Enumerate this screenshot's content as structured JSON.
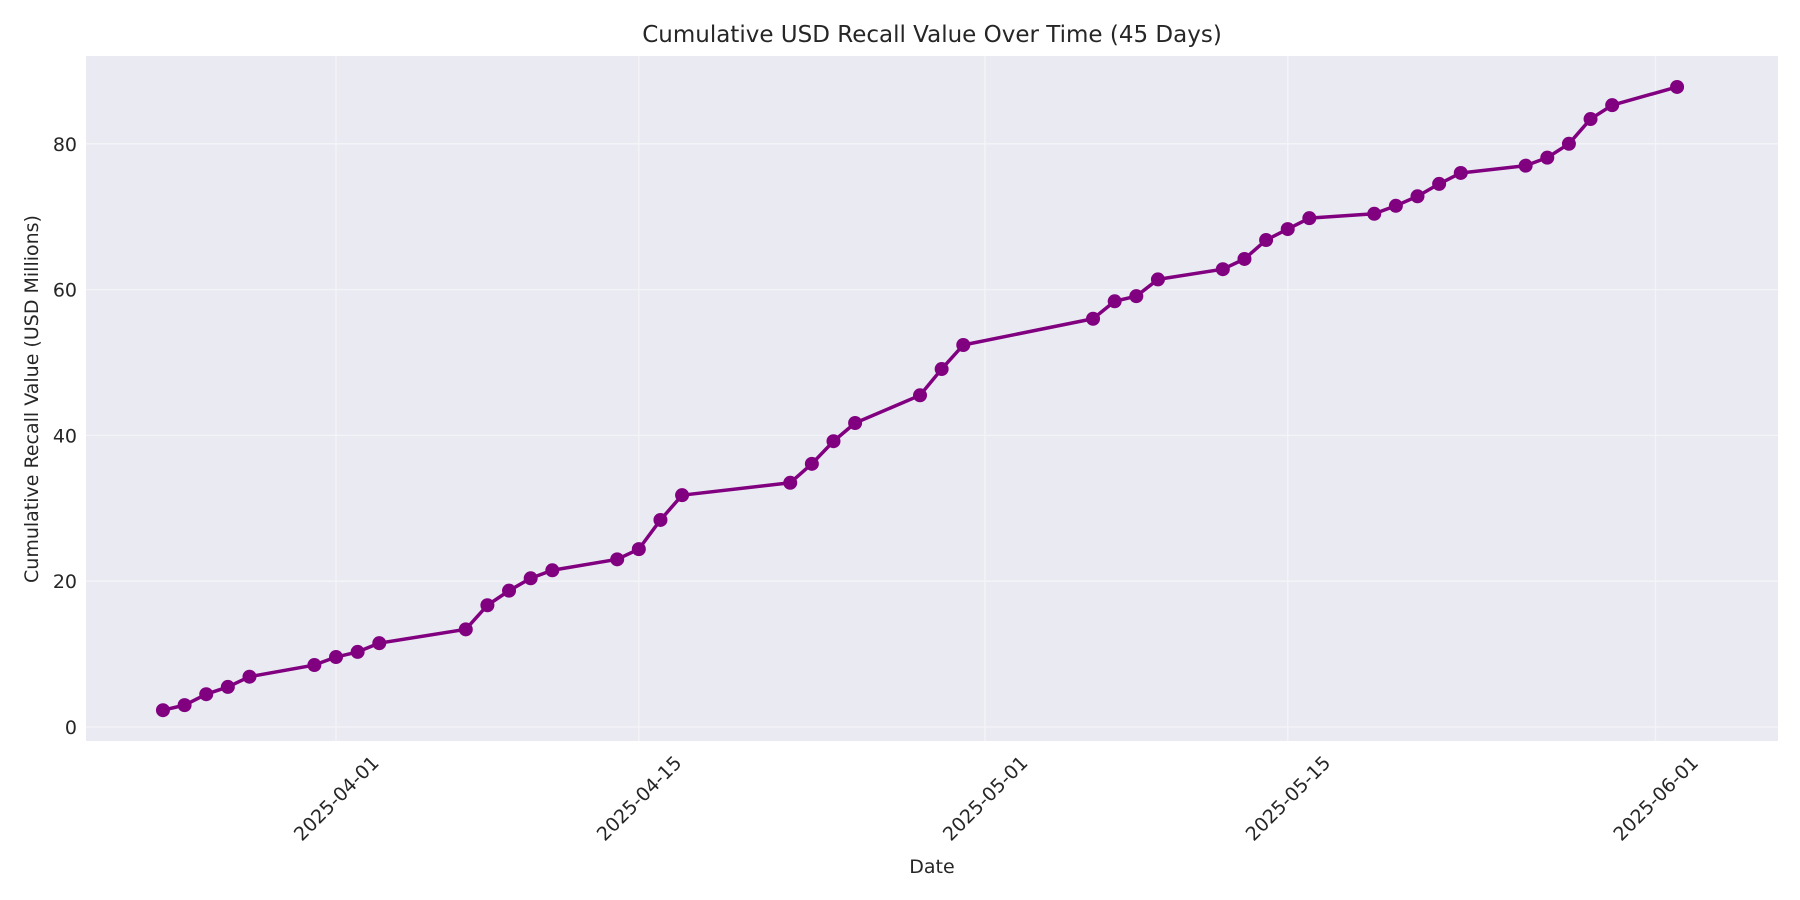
{
  "chart_data": {
    "type": "line",
    "title": "Cumulative USD Recall Value Over Time (45 Days)",
    "xlabel": "Date",
    "ylabel": "Cumulative Recall Value (USD Millions)",
    "ylim": [
      -2,
      91
    ],
    "xlim": [
      "2025-03-20",
      "2025-06-06"
    ],
    "grid": true,
    "legend": null,
    "line_color": "#800080",
    "background_color": "#eaeaf2",
    "grid_color": "#f4f4f8",
    "x_ticks": [
      "2025-04-01",
      "2025-04-15",
      "2025-05-01",
      "2025-05-15",
      "2025-06-01"
    ],
    "y_ticks": [
      0,
      20,
      40,
      60,
      80
    ],
    "series": [
      {
        "name": "Cumulative Recall Value",
        "x": [
          "2025-03-24",
          "2025-03-25",
          "2025-03-26",
          "2025-03-27",
          "2025-03-28",
          "2025-03-31",
          "2025-04-01",
          "2025-04-02",
          "2025-04-03",
          "2025-04-07",
          "2025-04-08",
          "2025-04-09",
          "2025-04-10",
          "2025-04-11",
          "2025-04-14",
          "2025-04-15",
          "2025-04-16",
          "2025-04-17",
          "2025-04-22",
          "2025-04-23",
          "2025-04-24",
          "2025-04-25",
          "2025-04-28",
          "2025-04-29",
          "2025-04-30",
          "2025-05-06",
          "2025-05-07",
          "2025-05-08",
          "2025-05-09",
          "2025-05-12",
          "2025-05-13",
          "2025-05-14",
          "2025-05-15",
          "2025-05-16",
          "2025-05-19",
          "2025-05-20",
          "2025-05-21",
          "2025-05-22",
          "2025-05-23",
          "2025-05-26",
          "2025-05-27",
          "2025-05-28",
          "2025-05-29",
          "2025-05-30",
          "2025-06-02"
        ],
        "values": [
          2.3,
          3.0,
          4.5,
          5.5,
          6.9,
          8.5,
          9.6,
          10.3,
          11.5,
          13.4,
          16.7,
          18.7,
          20.4,
          21.5,
          23.0,
          24.4,
          28.4,
          31.8,
          33.5,
          36.1,
          39.2,
          41.7,
          45.5,
          49.1,
          52.4,
          56.0,
          58.4,
          59.1,
          61.4,
          62.8,
          64.2,
          66.8,
          68.3,
          69.8,
          70.4,
          71.5,
          72.8,
          74.5,
          76.0,
          77.0,
          78.1,
          80.0,
          83.4,
          85.3,
          87.8
        ]
      }
    ]
  }
}
